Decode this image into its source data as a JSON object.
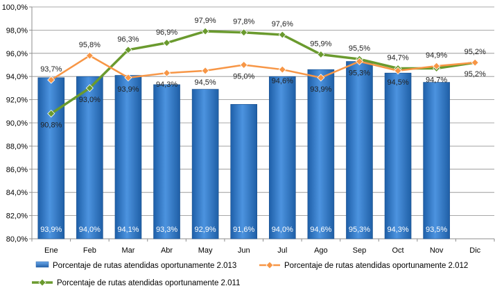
{
  "chart_data": {
    "type": "bar",
    "categories": [
      "Ene",
      "Feb",
      "Mar",
      "Abr",
      "May",
      "Jun",
      "Jul",
      "Ago",
      "Sep",
      "Oct",
      "Nov",
      "Dic"
    ],
    "ylim": [
      80,
      100
    ],
    "yticks": [
      "80,0%",
      "82,0%",
      "84,0%",
      "86,0%",
      "88,0%",
      "90,0%",
      "92,0%",
      "94,0%",
      "96,0%",
      "98,0%",
      "100,0%"
    ],
    "grid": true,
    "legend_position": "bottom",
    "series": [
      {
        "name": "Porcentaje de rutas atendidas oportunamente 2.013",
        "type": "bar",
        "color": "#2E75C8",
        "values": [
          93.9,
          94.0,
          94.1,
          93.3,
          92.9,
          91.6,
          94.0,
          94.6,
          95.3,
          94.3,
          93.5,
          null
        ],
        "labels": [
          "93,9%",
          "94,0%",
          "94,1%",
          "93,3%",
          "92,9%",
          "91,6%",
          "94,0%",
          "94,6%",
          "95,3%",
          "94,3%",
          "93,5%",
          ""
        ]
      },
      {
        "name": "Porcentaje de rutas atendidas oportunamente 2.012",
        "type": "line",
        "color": "#F79646",
        "values": [
          93.7,
          95.8,
          93.9,
          94.3,
          94.5,
          95.0,
          94.6,
          93.9,
          95.3,
          94.5,
          94.9,
          95.2
        ],
        "labels": [
          "93,7%",
          "95,8%",
          "93,9%",
          "94,3%",
          "94,5%",
          "95,0%",
          "94,6%",
          "93,9%",
          "95,3%",
          "94,5%",
          "94,9%",
          "95,2%"
        ]
      },
      {
        "name": "Porcentaje de rutas atendidas oportunamente 2.011",
        "type": "line",
        "color": "#6A9A2E",
        "values": [
          90.8,
          93.0,
          96.3,
          96.9,
          97.9,
          97.8,
          97.6,
          95.9,
          95.5,
          94.7,
          94.7,
          95.2
        ],
        "labels": [
          "90,8%",
          "93,0%",
          "96,3%",
          "96,9%",
          "97,9%",
          "97,8%",
          "97,6%",
          "95,9%",
          "95,5%",
          "94,7%",
          "94,7%",
          "95,2%"
        ]
      }
    ]
  }
}
